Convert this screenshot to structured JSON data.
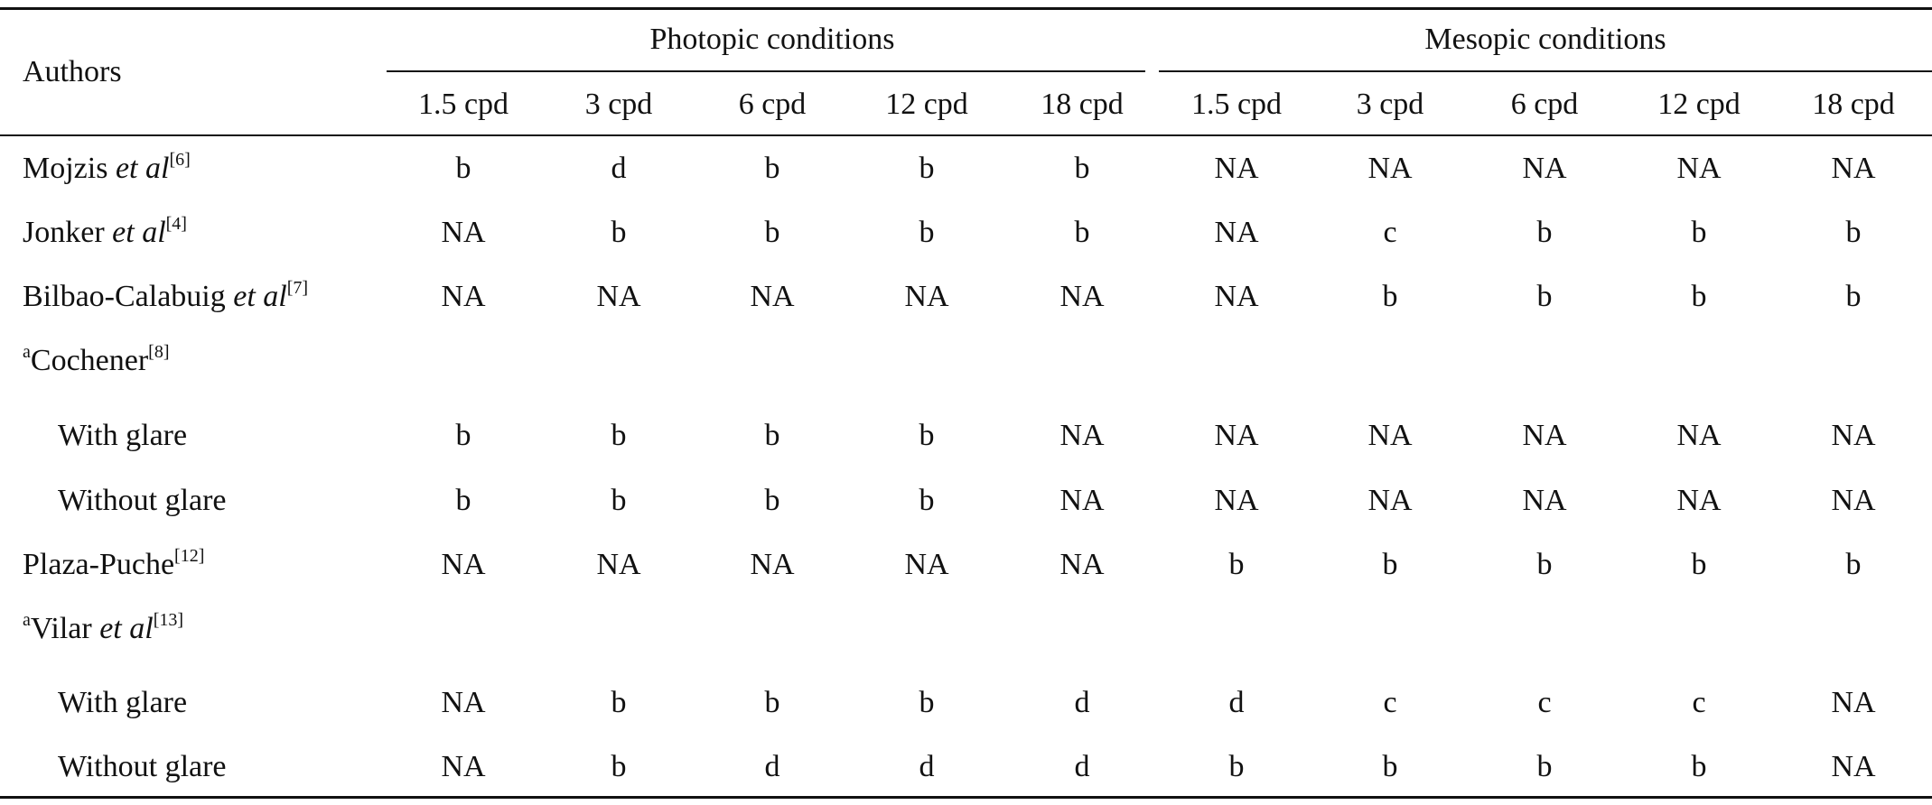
{
  "table": {
    "authors_header": "Authors",
    "groups": [
      "Photopic conditions",
      "Mesopic conditions"
    ],
    "frequencies": [
      "1.5 cpd",
      "3 cpd",
      "6 cpd",
      "12 cpd",
      "18 cpd",
      "1.5 cpd",
      "3 cpd",
      "6 cpd",
      "12 cpd",
      "18 cpd"
    ],
    "rows": [
      {
        "prefix": "",
        "name": "Mojzis ",
        "etal": "et al",
        "ref": "[6]",
        "sub": false,
        "values": [
          "b",
          "d",
          "b",
          "b",
          "b",
          "NA",
          "NA",
          "NA",
          "NA",
          "NA"
        ]
      },
      {
        "prefix": "",
        "name": "Jonker ",
        "etal": "et al",
        "ref": "[4]",
        "sub": false,
        "values": [
          "NA",
          "b",
          "b",
          "b",
          "b",
          "NA",
          "c",
          "b",
          "b",
          "b"
        ]
      },
      {
        "prefix": "",
        "name": "Bilbao-Calabuig ",
        "etal": "et al",
        "ref": "[7]",
        "sub": false,
        "values": [
          "NA",
          "NA",
          "NA",
          "NA",
          "NA",
          "NA",
          "b",
          "b",
          "b",
          "b"
        ]
      },
      {
        "prefix": "a",
        "name": "Cochener",
        "etal": "",
        "ref": "[8]",
        "sub": false,
        "values": []
      },
      {
        "prefix": "",
        "name": "With glare",
        "etal": "",
        "ref": "",
        "sub": true,
        "values": [
          "b",
          "b",
          "b",
          "b",
          "NA",
          "NA",
          "NA",
          "NA",
          "NA",
          "NA"
        ]
      },
      {
        "prefix": "",
        "name": "Without glare",
        "etal": "",
        "ref": "",
        "sub": true,
        "values": [
          "b",
          "b",
          "b",
          "b",
          "NA",
          "NA",
          "NA",
          "NA",
          "NA",
          "NA"
        ]
      },
      {
        "prefix": "",
        "name": "Plaza-Puche",
        "etal": "",
        "ref": "[12]",
        "sub": false,
        "values": [
          "NA",
          "NA",
          "NA",
          "NA",
          "NA",
          "b",
          "b",
          "b",
          "b",
          "b"
        ]
      },
      {
        "prefix": "a",
        "name": "Vilar ",
        "etal": "et al",
        "ref": "[13]",
        "sub": false,
        "values": []
      },
      {
        "prefix": "",
        "name": "With glare",
        "etal": "",
        "ref": "",
        "sub": true,
        "values": [
          "NA",
          "b",
          "b",
          "b",
          "d",
          "d",
          "c",
          "c",
          "c",
          "NA"
        ]
      },
      {
        "prefix": "",
        "name": "Without glare",
        "etal": "",
        "ref": "",
        "sub": true,
        "values": [
          "NA",
          "b",
          "d",
          "d",
          "d",
          "b",
          "b",
          "b",
          "b",
          "NA"
        ]
      }
    ]
  }
}
